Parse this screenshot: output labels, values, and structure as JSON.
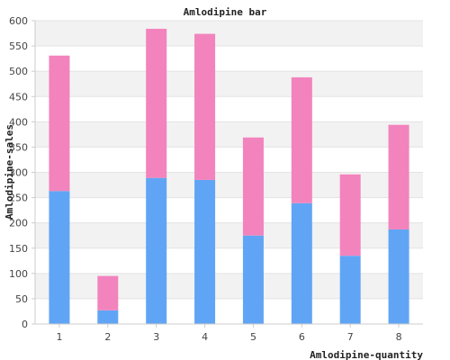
{
  "chart_data": {
    "type": "bar",
    "stacked": true,
    "title": "Amlodipine bar",
    "xlabel": "Amlodipine-quantity",
    "ylabel": "Amlodipine-sales",
    "categories": [
      "1",
      "2",
      "3",
      "4",
      "5",
      "6",
      "7",
      "8"
    ],
    "series": [
      {
        "color": "#60a5f5",
        "values": [
          263,
          27,
          289,
          285,
          175,
          239,
          135,
          187
        ]
      },
      {
        "color": "#f283bd",
        "values": [
          268,
          68,
          295,
          289,
          194,
          249,
          161,
          207
        ]
      }
    ],
    "ylim": [
      0,
      600
    ],
    "yticks": [
      0,
      50,
      100,
      150,
      200,
      250,
      300,
      350,
      400,
      450,
      500,
      550,
      600
    ],
    "grid": true,
    "band_colors": [
      "#f2f2f2",
      "#ffffff"
    ],
    "legend": "none"
  }
}
